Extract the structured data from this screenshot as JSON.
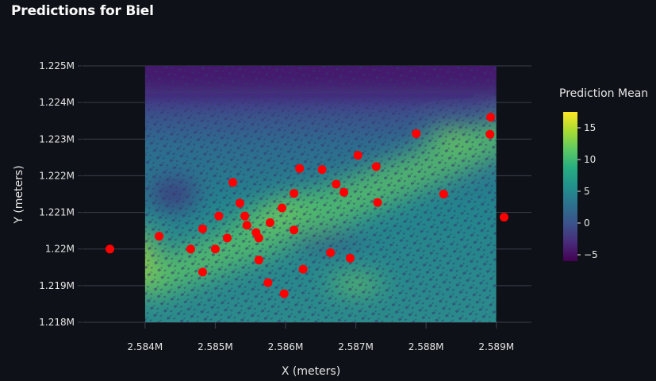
{
  "page": {
    "title": "Predictions for Biel"
  },
  "colors": {
    "background": "#0e1117",
    "points": "#ff0000",
    "grid": "#3a3f4b",
    "text": "#e6e6e6"
  },
  "chart_data": {
    "type": "heatmap",
    "title": "Predictions for Biel",
    "xlabel": "X (meters)",
    "ylabel": "Y (meters)",
    "xlim": [
      2583200,
      2589500
    ],
    "ylim": [
      1218000,
      1225000
    ],
    "heatmap_extent": {
      "x": [
        2584000,
        2589000
      ],
      "y": [
        1218000,
        1225000
      ]
    },
    "x_ticks": [
      {
        "value": 2584000,
        "label": "2.584M"
      },
      {
        "value": 2585000,
        "label": "2.585M"
      },
      {
        "value": 2586000,
        "label": "2.586M"
      },
      {
        "value": 2587000,
        "label": "2.587M"
      },
      {
        "value": 2588000,
        "label": "2.588M"
      },
      {
        "value": 2589000,
        "label": "2.589M"
      }
    ],
    "y_ticks": [
      {
        "value": 1218000,
        "label": "1.218M"
      },
      {
        "value": 1219000,
        "label": "1.219M"
      },
      {
        "value": 1220000,
        "label": "1.22M"
      },
      {
        "value": 1221000,
        "label": "1.221M"
      },
      {
        "value": 1222000,
        "label": "1.222M"
      },
      {
        "value": 1223000,
        "label": "1.223M"
      },
      {
        "value": 1224000,
        "label": "1.224M"
      },
      {
        "value": 1225000,
        "label": "1.225M"
      }
    ],
    "colorbar": {
      "title": "Prediction Mean",
      "range": [
        -6,
        17.5
      ],
      "colorscale": "viridis",
      "ticks": [
        {
          "value": 15,
          "label": "15"
        },
        {
          "value": 10,
          "label": "10"
        },
        {
          "value": 5,
          "label": "5"
        },
        {
          "value": 0,
          "label": "0"
        },
        {
          "value": -5,
          "label": "−5"
        }
      ]
    },
    "points": [
      {
        "x": 2583500,
        "y": 1220000
      },
      {
        "x": 2584200,
        "y": 1220350
      },
      {
        "x": 2584650,
        "y": 1220000
      },
      {
        "x": 2584820,
        "y": 1219370
      },
      {
        "x": 2584820,
        "y": 1220550
      },
      {
        "x": 2585000,
        "y": 1220000
      },
      {
        "x": 2585050,
        "y": 1220900
      },
      {
        "x": 2585170,
        "y": 1220300
      },
      {
        "x": 2585250,
        "y": 1221820
      },
      {
        "x": 2585350,
        "y": 1221250
      },
      {
        "x": 2585420,
        "y": 1220900
      },
      {
        "x": 2585450,
        "y": 1220650
      },
      {
        "x": 2585580,
        "y": 1220450
      },
      {
        "x": 2585620,
        "y": 1220300
      },
      {
        "x": 2585620,
        "y": 1219700
      },
      {
        "x": 2585750,
        "y": 1219080
      },
      {
        "x": 2585780,
        "y": 1220720
      },
      {
        "x": 2585950,
        "y": 1221120
      },
      {
        "x": 2585980,
        "y": 1218780
      },
      {
        "x": 2586120,
        "y": 1221520
      },
      {
        "x": 2586120,
        "y": 1220520
      },
      {
        "x": 2586200,
        "y": 1222200
      },
      {
        "x": 2586250,
        "y": 1219450
      },
      {
        "x": 2586520,
        "y": 1222170
      },
      {
        "x": 2586640,
        "y": 1219900
      },
      {
        "x": 2586720,
        "y": 1221770
      },
      {
        "x": 2586830,
        "y": 1221550
      },
      {
        "x": 2586920,
        "y": 1219750
      },
      {
        "x": 2587030,
        "y": 1222560
      },
      {
        "x": 2587290,
        "y": 1222250
      },
      {
        "x": 2587310,
        "y": 1221270
      },
      {
        "x": 2587860,
        "y": 1223150
      },
      {
        "x": 2588250,
        "y": 1221500
      },
      {
        "x": 2588910,
        "y": 1223130
      },
      {
        "x": 2588920,
        "y": 1223600
      },
      {
        "x": 2589110,
        "y": 1220870
      }
    ]
  }
}
